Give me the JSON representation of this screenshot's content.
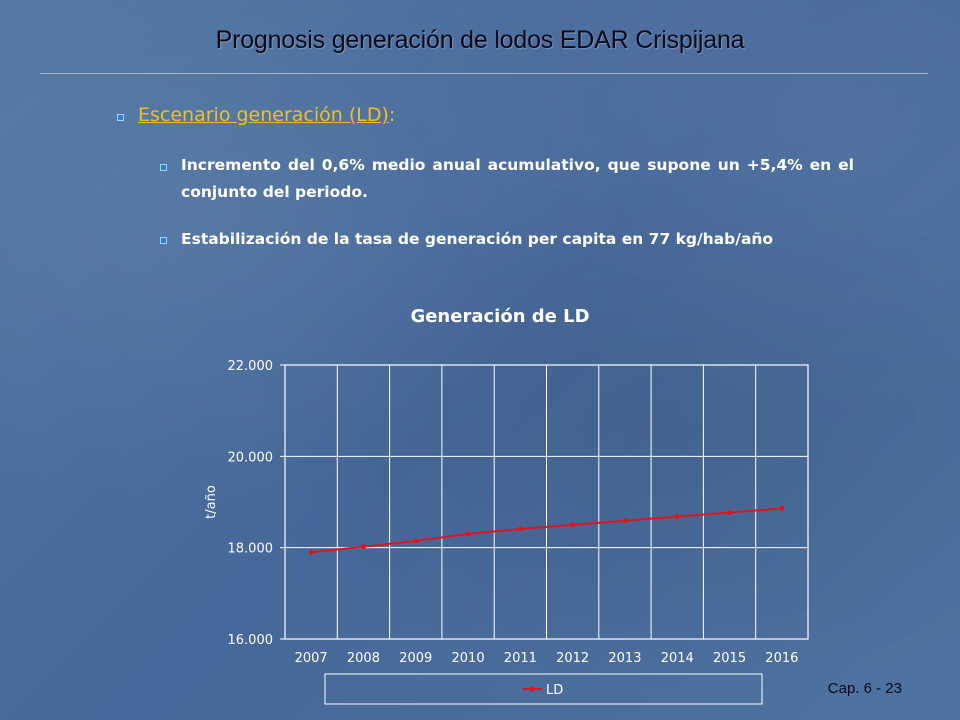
{
  "slide": {
    "title": "Prognosis generación de lodos EDAR Crispijana",
    "heading_link": "Escenario generación (LD)",
    "heading_suffix": ":",
    "bullets": [
      "Incremento del 0,6% medio anual acumulativo, que supone un +5,4% en el conjunto del periodo.",
      "Estabilización de la tasa de generación per capita en 77 kg/hab/año"
    ],
    "footer": "Cap. 6 - 23"
  },
  "colors": {
    "heading": "#f0c020",
    "bullet": "#2a7fd6",
    "series": "#e0141e",
    "plot_border": "#ffffff"
  },
  "chart_data": {
    "type": "line",
    "title": "Generación de LD",
    "xlabel": "",
    "ylabel": "t/año",
    "categories": [
      "2007",
      "2008",
      "2009",
      "2010",
      "2011",
      "2012",
      "2013",
      "2014",
      "2015",
      "2016"
    ],
    "ylim": [
      16000,
      22000
    ],
    "yticks": [
      16000,
      18000,
      20000,
      22000
    ],
    "ytick_labels": [
      "16.000",
      "18.000",
      "20.000",
      "22.000"
    ],
    "series": [
      {
        "name": "LD",
        "values": [
          17900,
          18020,
          18150,
          18300,
          18410,
          18500,
          18590,
          18680,
          18770,
          18860
        ]
      }
    ],
    "grid": true,
    "legend": "bottom"
  }
}
